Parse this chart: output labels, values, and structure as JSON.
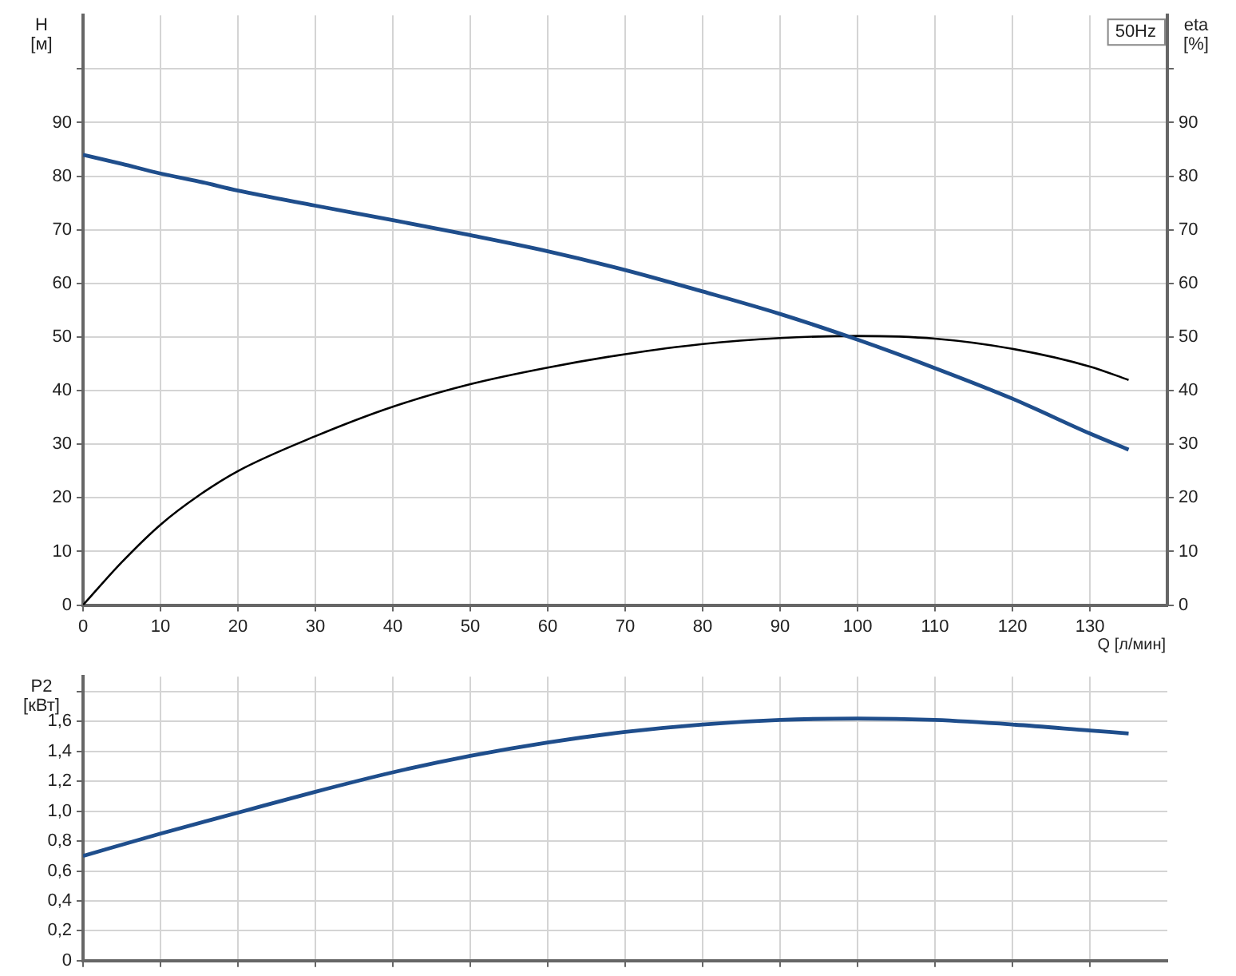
{
  "chart_data": [
    {
      "type": "line",
      "ylabel": "H [м]",
      "y2label": "eta [%]",
      "xlabel": "Q [л/мин]",
      "annotations": [
        "50Hz"
      ],
      "x": [
        0,
        5,
        10,
        15,
        20,
        30,
        40,
        50,
        60,
        70,
        80,
        90,
        100,
        110,
        120,
        130,
        135
      ],
      "series": [
        {
          "color": "#1f4e8c",
          "values": [
            84,
            82.3,
            80.5,
            79,
            77.3,
            74.5,
            71.8,
            69,
            66,
            62.5,
            58.5,
            54.3,
            49.5,
            44.2,
            38.5,
            32,
            29
          ]
        },
        {
          "color": "#000000",
          "axis": "y2",
          "values": [
            0,
            8,
            15,
            20.5,
            25,
            31.5,
            37,
            41.2,
            44.3,
            46.8,
            48.7,
            49.8,
            50.2,
            49.7,
            47.8,
            44.5,
            42
          ]
        }
      ],
      "xlim": [
        0,
        140
      ],
      "xticks": [
        0,
        10,
        20,
        30,
        40,
        50,
        60,
        70,
        80,
        90,
        100,
        110,
        120,
        130
      ],
      "ylim": [
        0,
        110
      ],
      "yticks": [
        0,
        10,
        20,
        30,
        40,
        50,
        60,
        70,
        80,
        90,
        {
          "value": 100,
          "label": null
        }
      ],
      "y2lim": [
        0,
        110
      ],
      "y2ticks": [
        0,
        10,
        20,
        30,
        40,
        50,
        60,
        70,
        80,
        90,
        {
          "value": 100,
          "label": null
        }
      ],
      "grid": true,
      "marker": "none"
    },
    {
      "type": "line",
      "ylabel": "P2 [кВт]",
      "x": [
        0,
        10,
        20,
        30,
        40,
        50,
        60,
        70,
        80,
        90,
        100,
        110,
        120,
        130,
        135
      ],
      "series": [
        {
          "color": "#1f4e8c",
          "values": [
            0.7,
            0.85,
            0.99,
            1.13,
            1.26,
            1.37,
            1.46,
            1.53,
            1.58,
            1.61,
            1.62,
            1.61,
            1.58,
            1.54,
            1.52
          ]
        }
      ],
      "xlim": [
        0,
        140
      ],
      "xticks": [
        0,
        10,
        20,
        30,
        40,
        50,
        60,
        70,
        80,
        90,
        100,
        110,
        120,
        130
      ],
      "ylim": [
        0,
        1.9
      ],
      "yticks": [
        0,
        {
          "value": 0.2,
          "label": "0,2"
        },
        {
          "value": 0.4,
          "label": "0,4"
        },
        {
          "value": 0.6,
          "label": "0,6"
        },
        {
          "value": 0.8,
          "label": "0,8"
        },
        {
          "value": 1,
          "label": "1,0"
        },
        {
          "value": 1.2,
          "label": "1,2"
        },
        {
          "value": 1.4,
          "label": "1,4"
        },
        {
          "value": 1.6,
          "label": "1,6"
        },
        {
          "value": 1.8,
          "label": null
        }
      ],
      "grid": true,
      "marker": "none",
      "tick_labels": "y"
    }
  ]
}
